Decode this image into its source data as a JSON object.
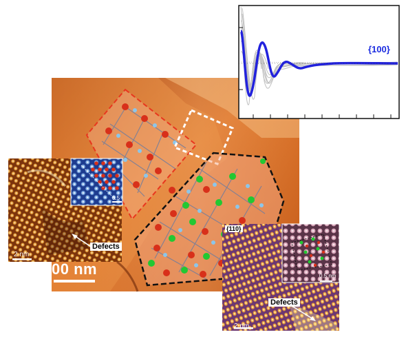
{
  "labels": {
    "scale_bar": "00 nm",
    "defects_left": "Defects",
    "defects_right": "Defects",
    "facet_110": "{110}",
    "facet_100": "{100}",
    "scale_2nm_left": "2 nm",
    "scale_05_left": "0.5",
    "scale_2nm_right": "2 nm",
    "scale_05nm_right": "0.5 nm"
  },
  "colors": {
    "red_atom": "#d8301a",
    "green_atom": "#22c832",
    "blue_atom": "#8cc6ea",
    "fit_curve": "#2222dd",
    "red_outline": "#e8361e",
    "black_outline": "#111111",
    "white_outline": "#ffffff"
  }
}
